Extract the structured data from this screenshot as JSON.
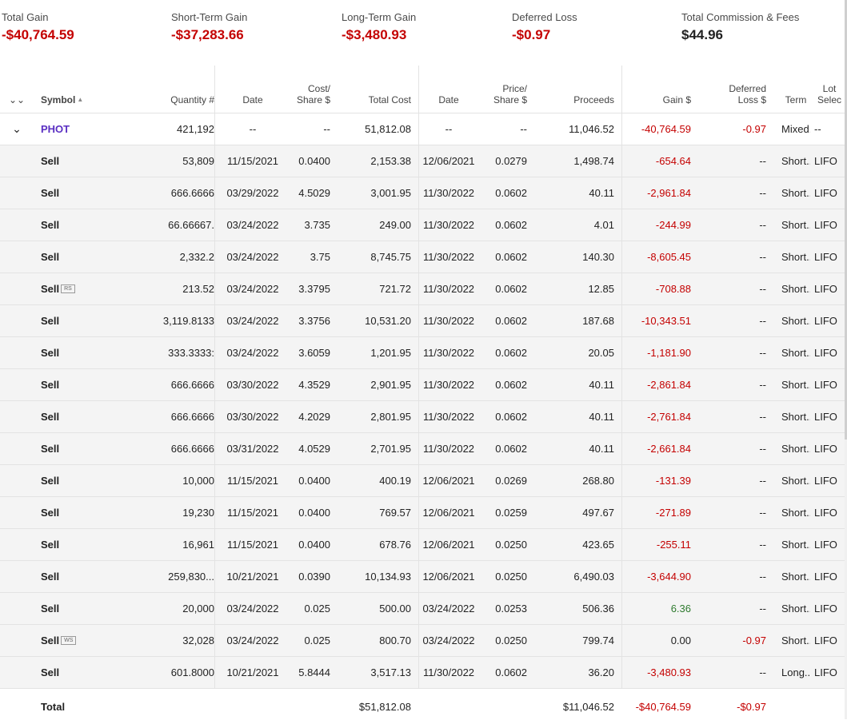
{
  "summary": [
    {
      "label": "Total Gain",
      "value": "-$40,764.59",
      "tone": "neg"
    },
    {
      "label": "Short-Term Gain",
      "value": "-$37,283.66",
      "tone": "neg"
    },
    {
      "label": "Long-Term Gain",
      "value": "-$3,480.93",
      "tone": "neg"
    },
    {
      "label": "Deferred Loss",
      "value": "-$0.97",
      "tone": "neg"
    },
    {
      "label": "Total Commission & Fees",
      "value": "$44.96",
      "tone": "dark"
    }
  ],
  "columns": {
    "symbol": "Symbol",
    "quantity": "Quantity #",
    "acq_date": "Date",
    "cost_share": [
      "Cost/",
      "Share $"
    ],
    "total_cost": "Total Cost",
    "sold_date": "Date",
    "price_share": [
      "Price/",
      "Share $"
    ],
    "proceeds": "Proceeds",
    "gain": "Gain $",
    "deferred": [
      "Deferred",
      "Loss $"
    ],
    "term": "Term",
    "lot": [
      "Lot",
      "Selec"
    ]
  },
  "parent": {
    "symbol": "PHOT",
    "quantity": "421,192",
    "acq_date": "--",
    "cost_share": "--",
    "total_cost": "51,812.08",
    "sold_date": "--",
    "price_share": "--",
    "proceeds": "11,046.52",
    "gain": "-40,764.59",
    "gain_tone": "neg",
    "deferred": "-0.97",
    "deferred_tone": "neg",
    "term": "Mixed...",
    "lot": "--"
  },
  "rows": [
    {
      "symbol": "Sell",
      "tag": "",
      "quantity": "53,809",
      "acq_date": "11/15/2021",
      "cost_share": "0.0400",
      "total_cost": "2,153.38",
      "sold_date": "12/06/2021",
      "price_share": "0.0279",
      "proceeds": "1,498.74",
      "gain": "-654.64",
      "gain_tone": "neg",
      "deferred": "--",
      "deferred_tone": "dark",
      "term": "Short...",
      "lot": "LIFO"
    },
    {
      "symbol": "Sell",
      "tag": "",
      "quantity": "666.6666",
      "acq_date": "03/29/2022",
      "cost_share": "4.5029",
      "total_cost": "3,001.95",
      "sold_date": "11/30/2022",
      "price_share": "0.0602",
      "proceeds": "40.11",
      "gain": "-2,961.84",
      "gain_tone": "neg",
      "deferred": "--",
      "deferred_tone": "dark",
      "term": "Short...",
      "lot": "LIFO"
    },
    {
      "symbol": "Sell",
      "tag": "",
      "quantity": "66.66667.",
      "acq_date": "03/24/2022",
      "cost_share": "3.735",
      "total_cost": "249.00",
      "sold_date": "11/30/2022",
      "price_share": "0.0602",
      "proceeds": "4.01",
      "gain": "-244.99",
      "gain_tone": "neg",
      "deferred": "--",
      "deferred_tone": "dark",
      "term": "Short...",
      "lot": "LIFO"
    },
    {
      "symbol": "Sell",
      "tag": "",
      "quantity": "2,332.2",
      "acq_date": "03/24/2022",
      "cost_share": "3.75",
      "total_cost": "8,745.75",
      "sold_date": "11/30/2022",
      "price_share": "0.0602",
      "proceeds": "140.30",
      "gain": "-8,605.45",
      "gain_tone": "neg",
      "deferred": "--",
      "deferred_tone": "dark",
      "term": "Short...",
      "lot": "LIFO"
    },
    {
      "symbol": "Sell",
      "tag": "RS",
      "quantity": "213.52",
      "acq_date": "03/24/2022",
      "cost_share": "3.3795",
      "total_cost": "721.72",
      "sold_date": "11/30/2022",
      "price_share": "0.0602",
      "proceeds": "12.85",
      "gain": "-708.88",
      "gain_tone": "neg",
      "deferred": "--",
      "deferred_tone": "dark",
      "term": "Short...",
      "lot": "LIFO"
    },
    {
      "symbol": "Sell",
      "tag": "",
      "quantity": "3,119.8133",
      "acq_date": "03/24/2022",
      "cost_share": "3.3756",
      "total_cost": "10,531.20",
      "sold_date": "11/30/2022",
      "price_share": "0.0602",
      "proceeds": "187.68",
      "gain": "-10,343.51",
      "gain_tone": "neg",
      "deferred": "--",
      "deferred_tone": "dark",
      "term": "Short...",
      "lot": "LIFO"
    },
    {
      "symbol": "Sell",
      "tag": "",
      "quantity": "333.3333:",
      "acq_date": "03/24/2022",
      "cost_share": "3.6059",
      "total_cost": "1,201.95",
      "sold_date": "11/30/2022",
      "price_share": "0.0602",
      "proceeds": "20.05",
      "gain": "-1,181.90",
      "gain_tone": "neg",
      "deferred": "--",
      "deferred_tone": "dark",
      "term": "Short...",
      "lot": "LIFO"
    },
    {
      "symbol": "Sell",
      "tag": "",
      "quantity": "666.6666",
      "acq_date": "03/30/2022",
      "cost_share": "4.3529",
      "total_cost": "2,901.95",
      "sold_date": "11/30/2022",
      "price_share": "0.0602",
      "proceeds": "40.11",
      "gain": "-2,861.84",
      "gain_tone": "neg",
      "deferred": "--",
      "deferred_tone": "dark",
      "term": "Short...",
      "lot": "LIFO"
    },
    {
      "symbol": "Sell",
      "tag": "",
      "quantity": "666.6666",
      "acq_date": "03/30/2022",
      "cost_share": "4.2029",
      "total_cost": "2,801.95",
      "sold_date": "11/30/2022",
      "price_share": "0.0602",
      "proceeds": "40.11",
      "gain": "-2,761.84",
      "gain_tone": "neg",
      "deferred": "--",
      "deferred_tone": "dark",
      "term": "Short...",
      "lot": "LIFO"
    },
    {
      "symbol": "Sell",
      "tag": "",
      "quantity": "666.6666",
      "acq_date": "03/31/2022",
      "cost_share": "4.0529",
      "total_cost": "2,701.95",
      "sold_date": "11/30/2022",
      "price_share": "0.0602",
      "proceeds": "40.11",
      "gain": "-2,661.84",
      "gain_tone": "neg",
      "deferred": "--",
      "deferred_tone": "dark",
      "term": "Short...",
      "lot": "LIFO"
    },
    {
      "symbol": "Sell",
      "tag": "",
      "quantity": "10,000",
      "acq_date": "11/15/2021",
      "cost_share": "0.0400",
      "total_cost": "400.19",
      "sold_date": "12/06/2021",
      "price_share": "0.0269",
      "proceeds": "268.80",
      "gain": "-131.39",
      "gain_tone": "neg",
      "deferred": "--",
      "deferred_tone": "dark",
      "term": "Short...",
      "lot": "LIFO"
    },
    {
      "symbol": "Sell",
      "tag": "",
      "quantity": "19,230",
      "acq_date": "11/15/2021",
      "cost_share": "0.0400",
      "total_cost": "769.57",
      "sold_date": "12/06/2021",
      "price_share": "0.0259",
      "proceeds": "497.67",
      "gain": "-271.89",
      "gain_tone": "neg",
      "deferred": "--",
      "deferred_tone": "dark",
      "term": "Short...",
      "lot": "LIFO"
    },
    {
      "symbol": "Sell",
      "tag": "",
      "quantity": "16,961",
      "acq_date": "11/15/2021",
      "cost_share": "0.0400",
      "total_cost": "678.76",
      "sold_date": "12/06/2021",
      "price_share": "0.0250",
      "proceeds": "423.65",
      "gain": "-255.11",
      "gain_tone": "neg",
      "deferred": "--",
      "deferred_tone": "dark",
      "term": "Short...",
      "lot": "LIFO"
    },
    {
      "symbol": "Sell",
      "tag": "",
      "quantity": "259,830...",
      "acq_date": "10/21/2021",
      "cost_share": "0.0390",
      "total_cost": "10,134.93",
      "sold_date": "12/06/2021",
      "price_share": "0.0250",
      "proceeds": "6,490.03",
      "gain": "-3,644.90",
      "gain_tone": "neg",
      "deferred": "--",
      "deferred_tone": "dark",
      "term": "Short...",
      "lot": "LIFO"
    },
    {
      "symbol": "Sell",
      "tag": "",
      "quantity": "20,000",
      "acq_date": "03/24/2022",
      "cost_share": "0.025",
      "total_cost": "500.00",
      "sold_date": "03/24/2022",
      "price_share": "0.0253",
      "proceeds": "506.36",
      "gain": "6.36",
      "gain_tone": "pos",
      "deferred": "--",
      "deferred_tone": "dark",
      "term": "Short...",
      "lot": "LIFO"
    },
    {
      "symbol": "Sell",
      "tag": "WS",
      "quantity": "32,028",
      "acq_date": "03/24/2022",
      "cost_share": "0.025",
      "total_cost": "800.70",
      "sold_date": "03/24/2022",
      "price_share": "0.0250",
      "proceeds": "799.74",
      "gain": "0.00",
      "gain_tone": "dark",
      "deferred": "-0.97",
      "deferred_tone": "neg",
      "term": "Short...",
      "lot": "LIFO"
    },
    {
      "symbol": "Sell",
      "tag": "",
      "quantity": "601.8000",
      "acq_date": "10/21/2021",
      "cost_share": "5.8444",
      "total_cost": "3,517.13",
      "sold_date": "11/30/2022",
      "price_share": "0.0602",
      "proceeds": "36.20",
      "gain": "-3,480.93",
      "gain_tone": "neg",
      "deferred": "--",
      "deferred_tone": "dark",
      "term": "Long...",
      "lot": "LIFO"
    }
  ],
  "total": {
    "label": "Total",
    "total_cost": "$51,812.08",
    "proceeds": "$11,046.52",
    "gain": "-$40,764.59",
    "gain_tone": "neg",
    "deferred": "-$0.97",
    "deferred_tone": "neg"
  },
  "icons": {
    "collapse_all": "⌄⌄",
    "expand_row": "⌄",
    "sort_up": "▲"
  }
}
